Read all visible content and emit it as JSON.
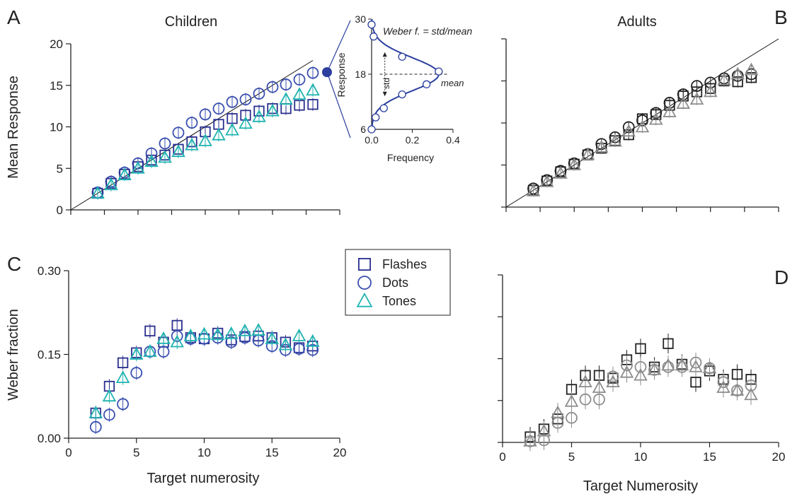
{
  "colors": {
    "flashes": "#2a2f8f",
    "dots": "#3a4fb0",
    "tones": "#1fb3b0",
    "adult_dark": "#222222",
    "adult_grey": "#8c8c8c",
    "identity": "#111111",
    "fit": "#2b3f9e"
  },
  "chart_data": [
    {
      "id": "A",
      "panel_letter": "A",
      "title": "Children",
      "type": "scatter",
      "xlabel": "",
      "ylabel": "Mean Response",
      "xlim": [
        0,
        20
      ],
      "ylim": [
        0,
        20
      ],
      "xticks": [],
      "yticks": [
        0,
        5,
        10,
        15,
        20
      ],
      "identity_line": [
        [
          0,
          0
        ],
        [
          18,
          18
        ]
      ],
      "series": [
        {
          "name": "Dots",
          "marker": "circle",
          "color": "#3a4fb0",
          "x": [
            2,
            3,
            4,
            5,
            6,
            7,
            8,
            9,
            10,
            11,
            12,
            13,
            14,
            15,
            16,
            17,
            18
          ],
          "y": [
            2.1,
            3.4,
            4.5,
            5.6,
            6.8,
            8.0,
            9.3,
            10.5,
            11.5,
            12.2,
            13.0,
            13.3,
            14.0,
            14.8,
            15.1,
            15.7,
            16.5
          ]
        },
        {
          "name": "Flashes",
          "marker": "square",
          "color": "#2a2f8f",
          "x": [
            2,
            3,
            4,
            5,
            6,
            7,
            8,
            9,
            10,
            11,
            12,
            13,
            14,
            15,
            16,
            17,
            18
          ],
          "y": [
            2.0,
            3.2,
            4.3,
            5.2,
            6.0,
            6.6,
            7.3,
            8.2,
            9.4,
            10.3,
            11.0,
            11.4,
            11.9,
            12.2,
            12.2,
            12.6,
            12.7
          ]
        },
        {
          "name": "Tones",
          "marker": "triangle",
          "color": "#1fb3b0",
          "x": [
            2,
            3,
            4,
            5,
            6,
            7,
            8,
            9,
            10,
            11,
            12,
            13,
            14,
            15,
            16,
            17,
            18
          ],
          "y": [
            2.0,
            3.0,
            4.2,
            5.0,
            5.8,
            6.3,
            7.0,
            7.8,
            8.3,
            9.0,
            9.6,
            10.4,
            11.2,
            11.9,
            13.3,
            13.9,
            14.4
          ]
        }
      ],
      "highlight": {
        "x": 18,
        "y": 16.5
      }
    },
    {
      "id": "inset",
      "type": "line",
      "xlabel": "Frequency",
      "ylabel": "Response",
      "xlim": [
        0,
        0.4
      ],
      "ylim": [
        6,
        30
      ],
      "xticks": [
        0.0,
        0.2,
        0.4
      ],
      "xticklabels": [
        "0.0",
        "0.2",
        "0.4"
      ],
      "yticks": [
        6,
        18,
        30
      ],
      "yticklabels": [
        "6",
        "18",
        "30"
      ],
      "annotation_title": "Weber f. = std/mean",
      "std_label": "std",
      "mean_label": "mean",
      "points": {
        "x": [
          0.0,
          0.02,
          0.06,
          0.15,
          0.27,
          0.33,
          0.15,
          0.01,
          0.0
        ],
        "y": [
          6,
          8.6,
          10.6,
          13.6,
          15.8,
          18.6,
          21.8,
          26.2,
          28.8
        ]
      },
      "gaussian": {
        "mean": 18,
        "sd": 3.6,
        "peak": 0.33
      }
    },
    {
      "id": "B",
      "panel_letter": "B",
      "title": "Adults",
      "type": "scatter",
      "xlabel": "",
      "ylabel": "",
      "xlim": [
        0,
        20
      ],
      "ylim": [
        0,
        20
      ],
      "xticks": [],
      "yticks": [],
      "identity_line": [
        [
          0,
          0
        ],
        [
          20,
          20
        ]
      ],
      "series": [
        {
          "marker": "circle",
          "color": "#222222",
          "x": [
            2,
            3,
            4,
            5,
            6,
            7,
            8,
            9,
            10,
            11,
            12,
            13,
            14,
            15,
            16,
            17,
            18
          ],
          "y": [
            2.2,
            3.2,
            4.3,
            5.2,
            6.3,
            7.5,
            8.3,
            9.5,
            10.3,
            11.2,
            12.4,
            13.4,
            14.4,
            14.8,
            15.3,
            15.6,
            15.8
          ]
        },
        {
          "marker": "square",
          "color": "#222222",
          "x": [
            2,
            3,
            4,
            5,
            6,
            7,
            8,
            9,
            10,
            11,
            12,
            13,
            14,
            15,
            16,
            17,
            18
          ],
          "y": [
            2.0,
            3.1,
            4.2,
            5.1,
            6.2,
            7.0,
            7.9,
            8.6,
            10.5,
            11.0,
            12.1,
            13.2,
            13.7,
            14.1,
            15.0,
            14.9,
            15.4
          ]
        },
        {
          "marker": "triangle",
          "color": "#8c8c8c",
          "x": [
            2,
            3,
            4,
            5,
            6,
            7,
            8,
            9,
            10,
            11,
            12,
            13,
            14,
            15,
            16,
            17,
            18
          ],
          "y": [
            1.9,
            3.0,
            4.0,
            5.0,
            6.2,
            7.1,
            7.8,
            9.0,
            9.5,
            10.4,
            11.3,
            12.3,
            12.8,
            13.7,
            15.1,
            15.8,
            16.3
          ]
        }
      ]
    },
    {
      "id": "C",
      "panel_letter": "C",
      "title": "",
      "type": "scatter",
      "xlabel": "Target numerosity",
      "ylabel": "Weber fraction",
      "xlim": [
        0,
        20
      ],
      "ylim": [
        0,
        0.3
      ],
      "xticks": [
        0,
        5,
        10,
        15,
        20
      ],
      "xticklabels": [
        "0",
        "5",
        "10",
        "15",
        "20"
      ],
      "yticks": [
        0,
        0.15,
        0.3
      ],
      "yticklabels": [
        "0.00",
        "0.15",
        "0.30"
      ],
      "series": [
        {
          "name": "Flashes",
          "marker": "square",
          "color": "#2a2f8f",
          "x": [
            2,
            3,
            4,
            5,
            6,
            7,
            8,
            9,
            10,
            11,
            12,
            13,
            14,
            15,
            16,
            17,
            18
          ],
          "y": [
            0.045,
            0.093,
            0.135,
            0.153,
            0.192,
            0.172,
            0.202,
            0.18,
            0.178,
            0.188,
            0.176,
            0.182,
            0.183,
            0.18,
            0.172,
            0.162,
            0.165
          ]
        },
        {
          "name": "Dots",
          "marker": "circle",
          "color": "#3a4fb0",
          "x": [
            2,
            3,
            4,
            5,
            6,
            7,
            8,
            9,
            10,
            11,
            12,
            13,
            14,
            15,
            16,
            17,
            18
          ],
          "y": [
            0.02,
            0.042,
            0.061,
            0.117,
            0.155,
            0.155,
            0.183,
            0.178,
            0.178,
            0.18,
            0.172,
            0.18,
            0.175,
            0.165,
            0.158,
            0.16,
            0.158
          ]
        },
        {
          "name": "Tones",
          "marker": "triangle",
          "color": "#1fb3b0",
          "x": [
            2,
            3,
            4,
            5,
            6,
            7,
            8,
            9,
            10,
            11,
            12,
            13,
            14,
            15,
            16,
            17,
            18
          ],
          "y": [
            0.045,
            0.075,
            0.108,
            0.15,
            0.155,
            0.178,
            0.172,
            0.183,
            0.186,
            0.185,
            0.187,
            0.192,
            0.193,
            0.178,
            0.167,
            0.183,
            0.173
          ]
        }
      ]
    },
    {
      "id": "D",
      "panel_letter": "D",
      "title": "",
      "type": "scatter",
      "xlabel": "Target Numerosity",
      "ylabel": "",
      "xlim": [
        0,
        20
      ],
      "ylim": [
        0,
        0.3
      ],
      "xticks": [
        0,
        5,
        10,
        15,
        20
      ],
      "xticklabels": [
        "0",
        "5",
        "10",
        "15",
        "20"
      ],
      "yticks": [
        0,
        0.075,
        0.15,
        0.225,
        0.3
      ],
      "yticklabels": [],
      "series": [
        {
          "marker": "square",
          "color": "#222222",
          "x": [
            2,
            3,
            4,
            5,
            6,
            7,
            8,
            9,
            10,
            11,
            12,
            13,
            14,
            15,
            16,
            17,
            18
          ],
          "y": [
            0.01,
            0.024,
            0.042,
            0.095,
            0.12,
            0.12,
            0.115,
            0.148,
            0.168,
            0.135,
            0.177,
            0.14,
            0.108,
            0.128,
            0.113,
            0.122,
            0.113
          ]
        },
        {
          "marker": "circle",
          "color": "#8c8c8c",
          "x": [
            2,
            3,
            4,
            5,
            6,
            7,
            8,
            9,
            10,
            11,
            12,
            13,
            14,
            15,
            16,
            17,
            18
          ],
          "y": [
            0.002,
            0.004,
            0.035,
            0.044,
            0.077,
            0.077,
            0.118,
            0.138,
            0.135,
            0.13,
            0.135,
            0.135,
            0.143,
            0.133,
            0.108,
            0.093,
            0.102
          ]
        },
        {
          "marker": "triangle",
          "color": "#8c8c8c",
          "x": [
            2,
            3,
            4,
            5,
            6,
            7,
            8,
            9,
            10,
            11,
            12,
            13,
            14,
            15,
            16,
            17,
            18
          ],
          "y": [
            0.002,
            0.02,
            0.053,
            0.073,
            0.108,
            0.098,
            0.108,
            0.125,
            0.12,
            0.13,
            0.138,
            0.138,
            0.135,
            0.133,
            0.098,
            0.093,
            0.085
          ]
        }
      ]
    }
  ],
  "legend": {
    "items": [
      {
        "label": "Flashes",
        "marker": "square",
        "color": "#2a2f8f"
      },
      {
        "label": "Dots",
        "marker": "circle",
        "color": "#3a4fb0"
      },
      {
        "label": "Tones",
        "marker": "triangle",
        "color": "#1fb3b0"
      }
    ]
  }
}
